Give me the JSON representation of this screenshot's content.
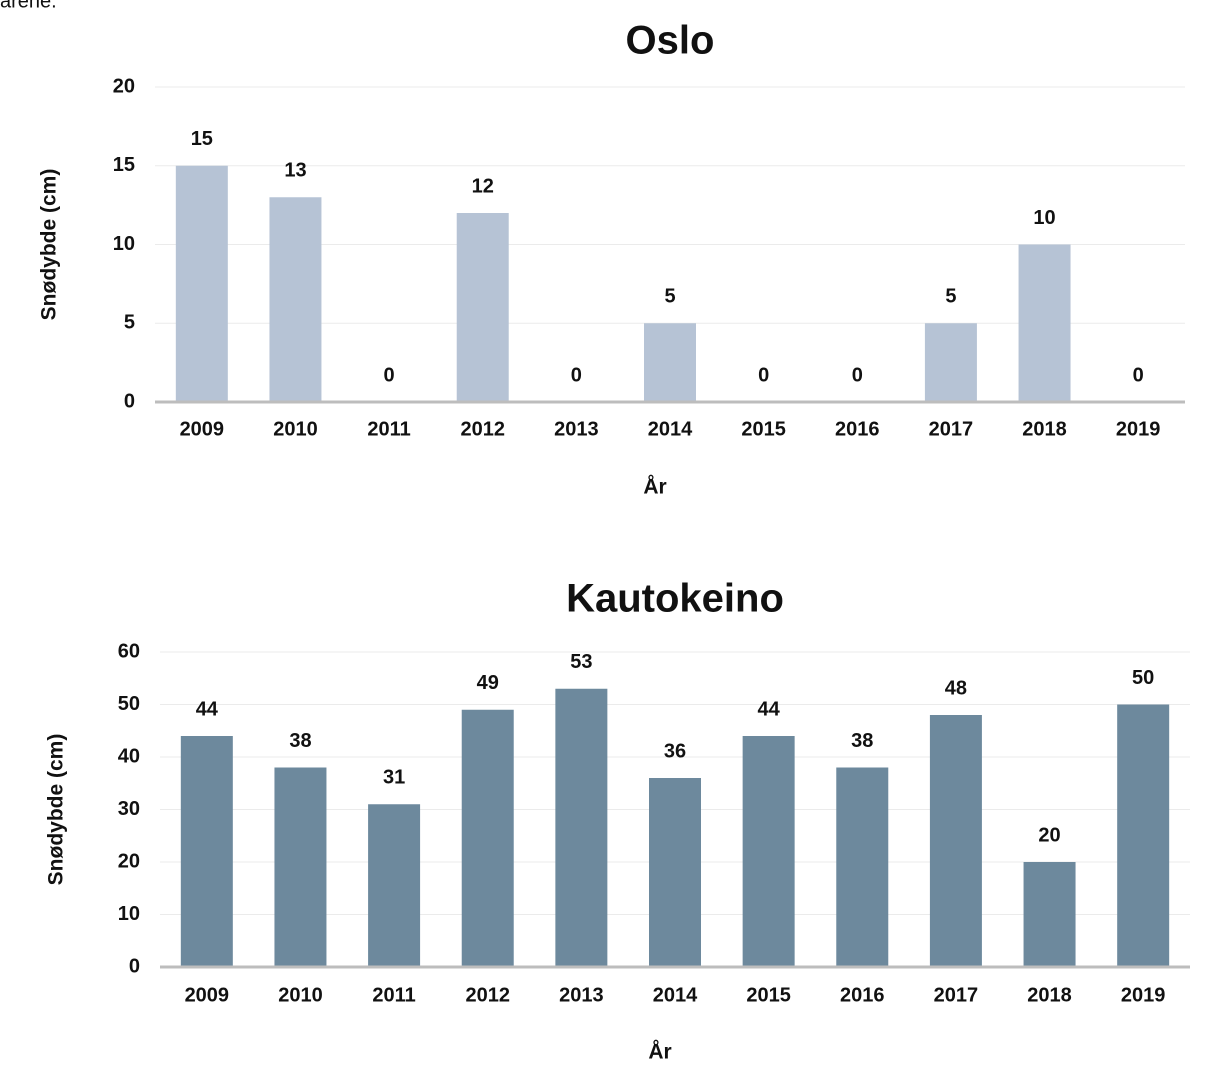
{
  "caption": "arene.",
  "chart_data": [
    {
      "type": "bar",
      "title": "Oslo",
      "xlabel": "År",
      "ylabel": "Snødybde (cm)",
      "categories": [
        "2009",
        "2010",
        "2011",
        "2012",
        "2013",
        "2014",
        "2015",
        "2016",
        "2017",
        "2018",
        "2019"
      ],
      "values": [
        15,
        13,
        0,
        12,
        0,
        5,
        0,
        0,
        5,
        10,
        0
      ],
      "color": "#b6c3d5",
      "ylim": [
        0,
        20
      ],
      "yticks": [
        0,
        5,
        10,
        15,
        20
      ],
      "grid": true
    },
    {
      "type": "bar",
      "title": "Kautokeino",
      "xlabel": "År",
      "ylabel": "Snødybde (cm)",
      "categories": [
        "2009",
        "2010",
        "2011",
        "2012",
        "2013",
        "2014",
        "2015",
        "2016",
        "2017",
        "2018",
        "2019"
      ],
      "values": [
        44,
        38,
        31,
        49,
        53,
        36,
        44,
        38,
        48,
        20,
        50
      ],
      "color": "#6d899d",
      "ylim": [
        0,
        60
      ],
      "yticks": [
        0,
        10,
        20,
        30,
        40,
        50,
        60
      ],
      "grid": true
    }
  ]
}
